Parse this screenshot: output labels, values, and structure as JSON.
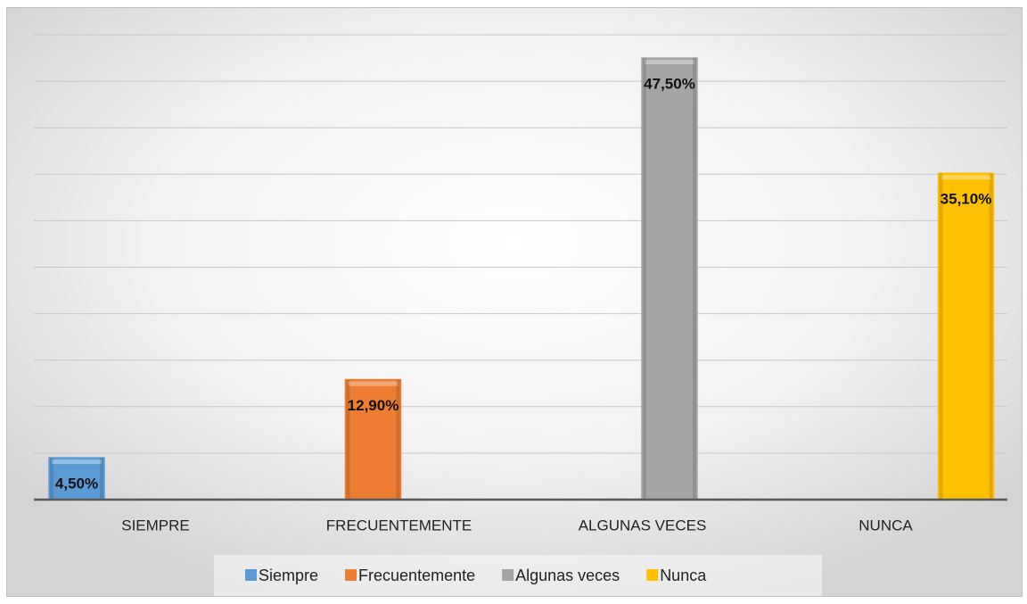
{
  "chart_data": {
    "type": "bar",
    "categories": [
      "SIEMPRE",
      "FRECUENTEMENTE",
      "ALGUNAS VECES",
      "NUNCA"
    ],
    "series": [
      {
        "name": "Siempre",
        "color": "#5b9bd5",
        "values": [
          4.5,
          null,
          null,
          null
        ],
        "value_labels": [
          "4,50%",
          null,
          null,
          null
        ]
      },
      {
        "name": "Frecuentemente",
        "color": "#ed7d31",
        "values": [
          null,
          12.9,
          null,
          null
        ],
        "value_labels": [
          null,
          "12,90%",
          null,
          null
        ]
      },
      {
        "name": "Algunas veces",
        "color": "#a5a5a5",
        "values": [
          null,
          null,
          47.5,
          null
        ],
        "value_labels": [
          null,
          null,
          "47,50%",
          null
        ]
      },
      {
        "name": "Nunca",
        "color": "#ffc000",
        "values": [
          null,
          null,
          null,
          35.1
        ],
        "value_labels": [
          null,
          null,
          null,
          "35,10%"
        ]
      }
    ],
    "ylim": [
      0,
      50
    ],
    "yticks": [
      0,
      5,
      10,
      15,
      20,
      25,
      30,
      35,
      40,
      45,
      50
    ],
    "grid": true,
    "legend": "bottom"
  }
}
